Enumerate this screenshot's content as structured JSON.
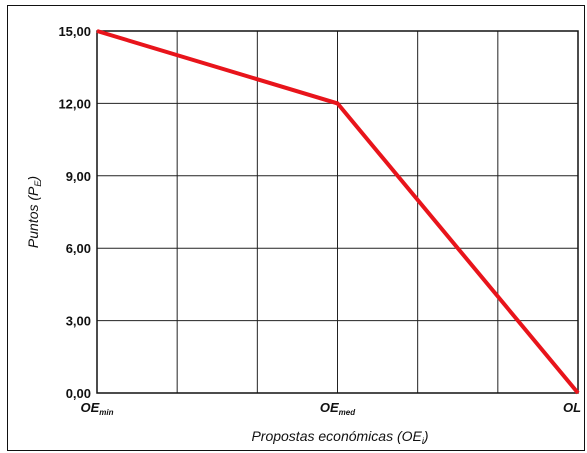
{
  "chart_data": {
    "type": "line",
    "title": "",
    "xlabel": "Propostas económicas (OE",
    "xlabel_sub": "i",
    "xlabel_close": ")",
    "ylabel": "Puntos (P",
    "ylabel_sub": "E",
    "ylabel_close": ")",
    "x_categories": [
      {
        "main": "OE",
        "sub": "min"
      },
      {
        "main": "OE",
        "sub": "med"
      },
      {
        "main": "OL",
        "sub": ""
      }
    ],
    "series": [
      {
        "name": "",
        "color": "#e8141b",
        "points": [
          {
            "x": "OE_min",
            "y": 15.0
          },
          {
            "x": "OE_med",
            "y": 12.0
          },
          {
            "x": "OL",
            "y": 0.0
          }
        ]
      }
    ],
    "y_ticks": [
      "0,00",
      "3,00",
      "6,00",
      "9,00",
      "12,00",
      "15,00"
    ],
    "ylim": [
      0,
      15
    ],
    "grid": true,
    "vertical_gridlines": 6
  }
}
